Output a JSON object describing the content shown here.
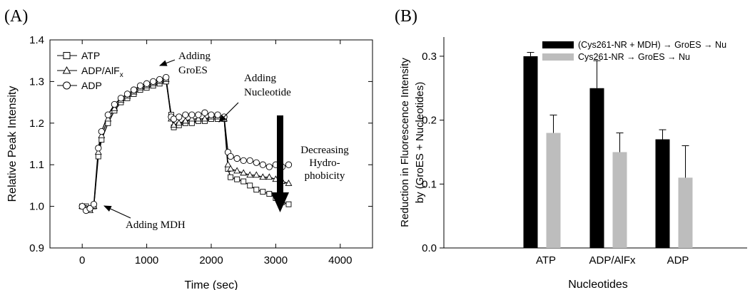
{
  "chart_data": [
    {
      "panel_label": "(A)",
      "type": "scatter",
      "xlabel": "Time (sec)",
      "ylabel": "Relative Peak Intensity",
      "xlim": [
        -500,
        4500
      ],
      "ylim": [
        0.9,
        1.4
      ],
      "xticks": [
        "0",
        "1000",
        "2000",
        "3000",
        "4000"
      ],
      "yticks": [
        "0.9",
        "1.0",
        "1.1",
        "1.2",
        "1.3",
        "1.4"
      ],
      "legend": "top-left",
      "colors": {
        "line": "#000000",
        "marker_fill": "#ffffff",
        "arrow": "#000000"
      },
      "series": [
        {
          "name": "ATP",
          "marker": "square",
          "x": [
            0,
            60,
            120,
            180,
            250,
            300,
            400,
            500,
            600,
            700,
            800,
            900,
            1000,
            1100,
            1200,
            1300,
            1380,
            1420,
            1500,
            1600,
            1700,
            1800,
            1900,
            2000,
            2100,
            2200,
            2260,
            2300,
            2400,
            2500,
            2600,
            2700,
            2800,
            2900,
            3000,
            3100,
            3200
          ],
          "y": [
            1.0,
            1.0,
            0.995,
            1.0,
            1.12,
            1.16,
            1.2,
            1.23,
            1.25,
            1.26,
            1.27,
            1.28,
            1.285,
            1.29,
            1.295,
            1.3,
            1.22,
            1.19,
            1.195,
            1.2,
            1.2,
            1.205,
            1.205,
            1.21,
            1.21,
            1.21,
            1.09,
            1.07,
            1.065,
            1.06,
            1.05,
            1.04,
            1.035,
            1.03,
            1.02,
            1.01,
            1.005
          ]
        },
        {
          "name": "ADP/AlF",
          "name_subscript": "x",
          "marker": "triangle",
          "x": [
            0,
            60,
            120,
            180,
            250,
            300,
            400,
            500,
            600,
            700,
            800,
            900,
            1000,
            1100,
            1200,
            1300,
            1380,
            1420,
            1500,
            1600,
            1700,
            1800,
            1900,
            2000,
            2100,
            2200,
            2260,
            2300,
            2400,
            2500,
            2600,
            2700,
            2800,
            2900,
            3000,
            3100,
            3200
          ],
          "y": [
            1.0,
            0.995,
            0.99,
            1.0,
            1.13,
            1.17,
            1.21,
            1.235,
            1.255,
            1.265,
            1.275,
            1.285,
            1.29,
            1.295,
            1.3,
            1.305,
            1.21,
            1.195,
            1.2,
            1.205,
            1.21,
            1.21,
            1.21,
            1.215,
            1.215,
            1.21,
            1.1,
            1.09,
            1.085,
            1.08,
            1.075,
            1.075,
            1.07,
            1.07,
            1.065,
            1.06,
            1.055
          ]
        },
        {
          "name": "ADP",
          "marker": "circle",
          "x": [
            0,
            60,
            120,
            180,
            250,
            300,
            400,
            500,
            600,
            700,
            800,
            900,
            1000,
            1100,
            1200,
            1300,
            1380,
            1420,
            1500,
            1600,
            1700,
            1800,
            1900,
            2000,
            2100,
            2200,
            2260,
            2300,
            2400,
            2500,
            2600,
            2700,
            2800,
            2900,
            3000,
            3100,
            3200
          ],
          "y": [
            1.0,
            0.99,
            0.995,
            1.005,
            1.14,
            1.18,
            1.22,
            1.245,
            1.26,
            1.27,
            1.28,
            1.29,
            1.295,
            1.3,
            1.305,
            1.31,
            1.215,
            1.21,
            1.215,
            1.22,
            1.22,
            1.22,
            1.225,
            1.22,
            1.22,
            1.215,
            1.13,
            1.12,
            1.115,
            1.11,
            1.11,
            1.105,
            1.1,
            1.095,
            1.1,
            1.095,
            1.1
          ]
        }
      ],
      "annotations": [
        {
          "lines": [
            "Adding MDH"
          ],
          "target": [
            180,
            1.0
          ]
        },
        {
          "lines": [
            "Adding",
            "GroES"
          ],
          "target": [
            1330,
            1.33
          ]
        },
        {
          "lines": [
            "Adding",
            "Nucleotide"
          ],
          "target": [
            2250,
            1.22
          ]
        },
        {
          "lines": [
            "Decreasing",
            "Hydro-",
            "phobicity"
          ],
          "arrow": "thick-down"
        }
      ]
    },
    {
      "panel_label": "(B)",
      "type": "bar",
      "xlabel": "Nucleotides",
      "ylabel_lines": [
        "Reduction in Fluorescence Intensity",
        "by (GroES + Nucleotides)"
      ],
      "ylim": [
        0,
        0.33
      ],
      "yticks": [
        "0.0",
        "0.1",
        "0.2",
        "0.3"
      ],
      "categories": [
        "ATP",
        "ADP/AlFx",
        "ADP"
      ],
      "legend": "top-right",
      "series": [
        {
          "name": "(Cys261-NR + MDH) → GroES → Nu",
          "color": "#000000",
          "values": [
            0.3,
            0.25,
            0.17
          ],
          "errors": [
            0.006,
            0.043,
            0.015
          ]
        },
        {
          "name": "Cys261-NR → GroES → Nu",
          "color": "#bdbdbd",
          "values": [
            0.18,
            0.15,
            0.11
          ],
          "errors": [
            0.028,
            0.03,
            0.05
          ]
        }
      ]
    }
  ]
}
